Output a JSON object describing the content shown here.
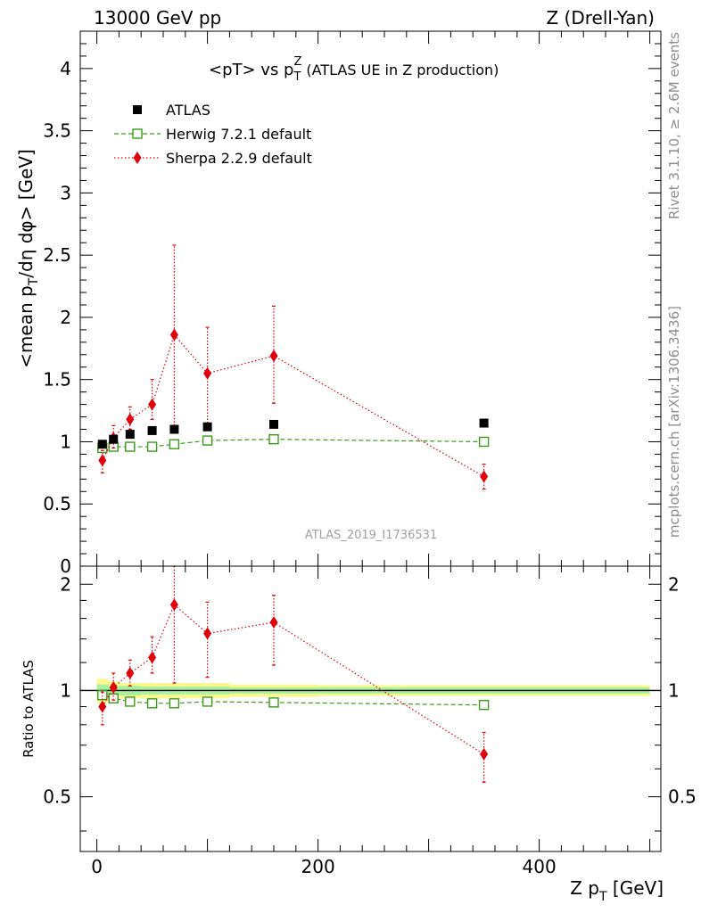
{
  "header": {
    "left": "13000 GeV pp",
    "right": "Z (Drell-Yan)"
  },
  "side_labels": {
    "rivet": "Rivet 3.1.10, ≥ 2.6M events",
    "mcplots": "mcplots.cern.ch [arXiv:1306.3436]"
  },
  "watermark": "ATLAS_2019_I1736531",
  "chart_data": {
    "type": "scatter",
    "title_main": "<pT> vs p",
    "title_sub": "T",
    "title_sup": "Z",
    "title_rest": " (ATLAS UE in Z production)",
    "ylabel_main": "<mean p",
    "ylabel_sub": "T",
    "ylabel_rest": "/dη dφ> [GeV]",
    "ratio_ylabel": "Ratio to ATLAS",
    "xlabel_main": "Z p",
    "xlabel_sub": "T",
    "xlabel_rest": " [GeV]",
    "xlim": [
      -15,
      510
    ],
    "ylim": [
      0,
      4.3
    ],
    "ratio_ylim": [
      0.35,
      2.25
    ],
    "x_ticks": [
      0,
      200,
      400
    ],
    "y_ticks": [
      "0",
      "0.5",
      "1",
      "1.5",
      "2",
      "2.5",
      "3",
      "3.5",
      "4"
    ],
    "ratio_y_ticks": [
      "0.5",
      "1",
      "2"
    ],
    "legend_position": "top-left",
    "series": [
      {
        "name": "ATLAS",
        "color": "#000000",
        "marker": "square-filled",
        "x": [
          5,
          15,
          30,
          50,
          70,
          100,
          160,
          350
        ],
        "y": [
          0.98,
          1.02,
          1.06,
          1.09,
          1.1,
          1.12,
          1.14,
          1.15
        ]
      },
      {
        "name": "Herwig 7.2.1 default",
        "color": "#3a9a1a",
        "marker": "square-open",
        "line": "dashed",
        "x": [
          5,
          15,
          30,
          50,
          70,
          100,
          160,
          350
        ],
        "y": [
          0.95,
          0.96,
          0.96,
          0.96,
          0.98,
          1.01,
          1.02,
          1.0
        ],
        "ratio": [
          0.97,
          0.95,
          0.93,
          0.92,
          0.92,
          0.93,
          0.925,
          0.91
        ]
      },
      {
        "name": "Sherpa 2.2.9 default",
        "color": "#e0000a",
        "marker": "diamond-filled",
        "line": "dotted",
        "x": [
          5,
          15,
          30,
          50,
          70,
          100,
          160,
          350
        ],
        "y": [
          0.85,
          1.03,
          1.18,
          1.3,
          1.86,
          1.55,
          1.69,
          0.72
        ],
        "yerr_low": [
          0.1,
          0.08,
          0.08,
          0.12,
          0.78,
          0.4,
          0.38,
          0.1
        ],
        "yerr_high": [
          0.08,
          0.1,
          0.1,
          0.2,
          0.72,
          0.37,
          0.4,
          0.1
        ],
        "ratio": [
          0.9,
          1.02,
          1.12,
          1.24,
          1.75,
          1.45,
          1.56,
          0.66
        ],
        "ratio_err_low": [
          0.1,
          0.08,
          0.09,
          0.12,
          0.7,
          0.36,
          0.38,
          0.11
        ],
        "ratio_err_high": [
          0.09,
          0.1,
          0.1,
          0.18,
          0.5,
          0.33,
          0.3,
          0.1
        ]
      }
    ],
    "ratio_band": {
      "x_edges": [
        0,
        10,
        20,
        40,
        60,
        80,
        120,
        200,
        500
      ],
      "inner": [
        0.04,
        0.03,
        0.03,
        0.025,
        0.025,
        0.025,
        0.02,
        0.02
      ],
      "outer": [
        0.08,
        0.06,
        0.05,
        0.05,
        0.05,
        0.05,
        0.04,
        0.035
      ],
      "inner_color": "#a8f0a0",
      "outer_color": "#f8f88c"
    }
  }
}
